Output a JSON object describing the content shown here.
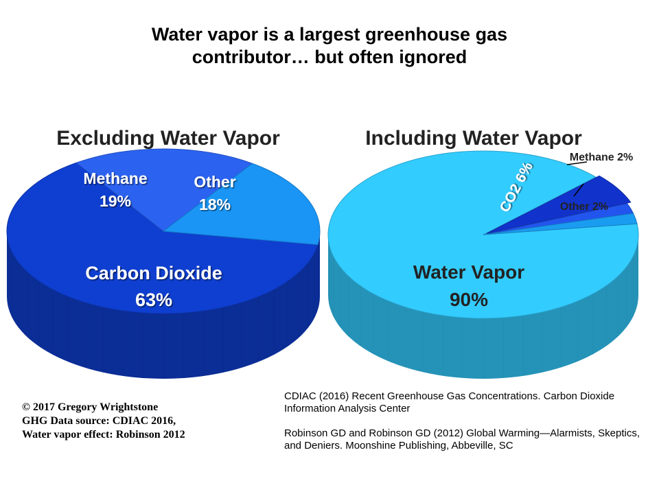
{
  "slide": {
    "title_line1": "Water vapor is a largest greenhouse gas",
    "title_line2": "contributor… but often ignored"
  },
  "chart_data": [
    {
      "type": "pie",
      "title": "Excluding Water Vapor",
      "slices": [
        {
          "label": "Carbon Dioxide",
          "value": 63,
          "value_label": "63%",
          "color": "#0f3fd0"
        },
        {
          "label": "Methane",
          "value": 19,
          "value_label": "19%",
          "color": "#2b62f0"
        },
        {
          "label": "Other",
          "value": 18,
          "value_label": "18%",
          "color": "#1a95f5"
        }
      ],
      "style": "3d"
    },
    {
      "type": "pie",
      "title": "Including Water Vapor",
      "slices": [
        {
          "label": "Water Vapor",
          "value": 90,
          "value_label": "90%",
          "color": "#33ccff"
        },
        {
          "label": "CO2",
          "value": 6,
          "value_label": "6%",
          "color": "#1133cc"
        },
        {
          "label": "Methane",
          "value": 2,
          "value_label": "2%",
          "color": "#2255ee"
        },
        {
          "label": "Other",
          "value": 2,
          "value_label": "2%",
          "color": "#1a9cf0"
        }
      ],
      "style": "3d",
      "callouts": [
        "Methane 2%",
        "Other 2%"
      ],
      "inline_label": "CO2 6%"
    }
  ],
  "credits": {
    "line1": "© 2017 Gregory Wrightstone",
    "line2": "GHG Data source: CDIAC 2016,",
    "line3": "Water vapor effect:  Robinson 2012"
  },
  "references": {
    "ref1": "CDIAC (2016) Recent Greenhouse Gas Concentrations. Carbon Dioxide Information Analysis Center",
    "ref2": "Robinson GD and Robinson GD (2012) Global Warming—Alarmists, Skeptics, and Deniers. Moonshine Publishing, Abbeville, SC"
  }
}
